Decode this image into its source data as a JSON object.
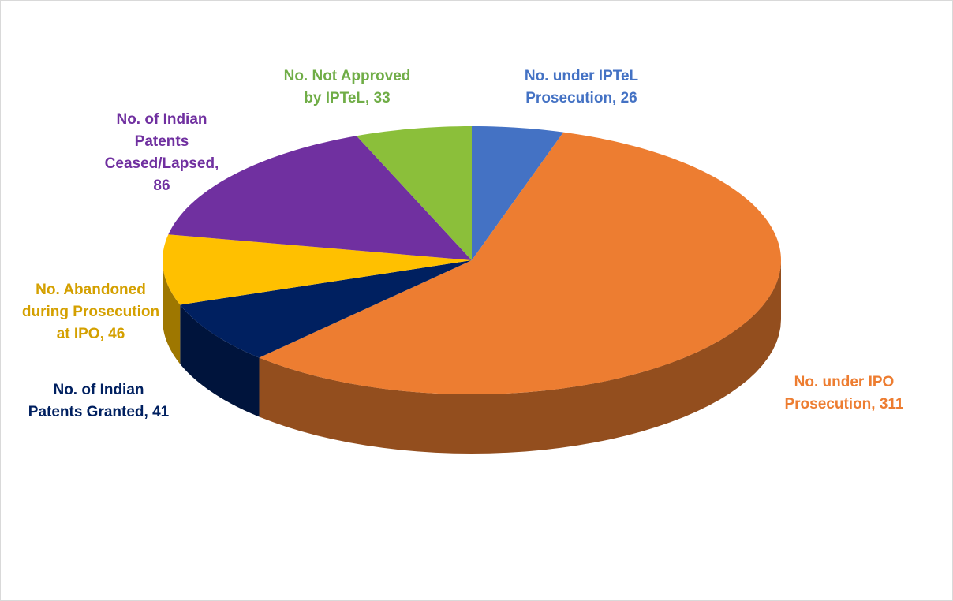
{
  "chart_data": {
    "type": "pie3d",
    "values": [
      26,
      311,
      41,
      46,
      86,
      33
    ],
    "value_labels": [
      "No. under IPTeL Prosecution, 26",
      "No. under IPO Prosecution, 311",
      "No. of Indian Patents Granted, 41",
      "No. Abandoned during Prosecution at IPO, 46",
      "No. of Indian Patents Ceased/Lapsed, 86",
      "No. Not Approved by IPTeL, 33"
    ],
    "colors": [
      "#4472c4",
      "#ed7d31",
      "#002060",
      "#ffc000",
      "#7030a0",
      "#8bbf3a"
    ],
    "label_colors": [
      "#4472c4",
      "#ed7d31",
      "#002060",
      "#d4a000",
      "#7030a0",
      "#70ad47"
    ]
  }
}
